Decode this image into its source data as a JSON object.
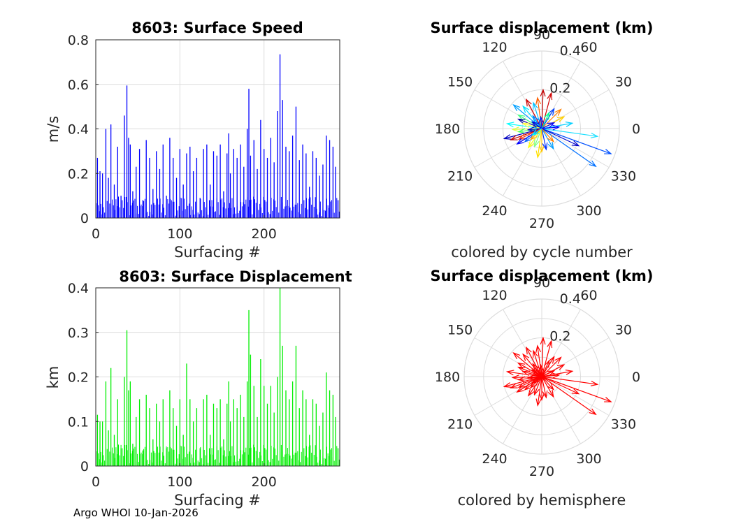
{
  "footer": "Argo WHOI 10-Jan-2026",
  "colors": {
    "speed_bars": "#0000ff",
    "displacement_bars": "#00ee00",
    "hemisphere_arrows": "#ff0000",
    "grid": "#dcdcdc",
    "axis": "#262626"
  },
  "chart_data": [
    {
      "type": "bar",
      "title": "8603: Surface Speed",
      "xlabel": "Surfacing #",
      "ylabel": "m/s",
      "xlim": [
        0,
        290
      ],
      "ylim": [
        0,
        0.8
      ],
      "xticks": [
        "0",
        "100",
        "200"
      ],
      "yticks": [
        "0",
        "0.2",
        "0.4",
        "0.6",
        "0.8"
      ],
      "grid": true,
      "x": [
        2,
        5,
        8,
        12,
        15,
        18,
        22,
        26,
        30,
        34,
        37,
        39,
        41,
        44,
        48,
        52,
        56,
        60,
        64,
        68,
        72,
        76,
        80,
        84,
        88,
        92,
        96,
        100,
        104,
        108,
        112,
        116,
        120,
        124,
        128,
        132,
        136,
        140,
        144,
        148,
        152,
        156,
        158,
        160,
        164,
        168,
        172,
        176,
        180,
        182,
        184,
        188,
        192,
        196,
        200,
        204,
        208,
        212,
        216,
        219,
        222,
        226,
        230,
        234,
        238,
        242,
        246,
        250,
        254,
        258,
        262,
        266,
        270,
        274,
        278,
        282,
        285,
        288
      ],
      "values": [
        0.27,
        0.21,
        0.2,
        0.4,
        0.18,
        0.42,
        0.15,
        0.32,
        0.1,
        0.46,
        0.595,
        0.36,
        0.33,
        0.12,
        0.23,
        0.31,
        0.08,
        0.35,
        0.27,
        0.13,
        0.3,
        0.22,
        0.33,
        0.1,
        0.36,
        0.27,
        0.18,
        0.31,
        0.15,
        0.29,
        0.32,
        0.21,
        0.27,
        0.09,
        0.31,
        0.33,
        0.15,
        0.3,
        0.28,
        0.33,
        0.12,
        0.29,
        0.38,
        0.2,
        0.31,
        0.27,
        0.33,
        0.23,
        0.4,
        0.58,
        0.28,
        0.35,
        0.22,
        0.44,
        0.31,
        0.27,
        0.36,
        0.25,
        0.48,
        0.735,
        0.53,
        0.32,
        0.3,
        0.37,
        0.5,
        0.26,
        0.33,
        0.29,
        0.14,
        0.3,
        0.27,
        0.19,
        0.24,
        0.37,
        0.35,
        0.32,
        0.23,
        0.08
      ]
    },
    {
      "type": "bar",
      "title": "8603: Surface Displacement",
      "xlabel": "Surfacing #",
      "ylabel": "km",
      "xlim": [
        0,
        290
      ],
      "ylim": [
        0,
        0.4
      ],
      "xticks": [
        "0",
        "100",
        "200"
      ],
      "yticks": [
        "0",
        "0.1",
        "0.2",
        "0.3",
        "0.4"
      ],
      "grid": true,
      "x": [
        2,
        5,
        8,
        12,
        15,
        18,
        22,
        26,
        30,
        34,
        37,
        39,
        41,
        44,
        48,
        52,
        56,
        60,
        64,
        68,
        72,
        76,
        80,
        84,
        88,
        92,
        96,
        100,
        104,
        108,
        112,
        116,
        120,
        124,
        128,
        132,
        136,
        140,
        144,
        148,
        152,
        156,
        158,
        160,
        164,
        168,
        172,
        176,
        180,
        182,
        184,
        188,
        192,
        196,
        200,
        204,
        208,
        212,
        216,
        219,
        222,
        226,
        230,
        234,
        238,
        242,
        246,
        250,
        254,
        258,
        262,
        266,
        270,
        274,
        278,
        282,
        285,
        288
      ],
      "values": [
        0.115,
        0.1,
        0.1,
        0.19,
        0.08,
        0.22,
        0.07,
        0.15,
        0.04,
        0.2,
        0.305,
        0.17,
        0.19,
        0.05,
        0.11,
        0.15,
        0.035,
        0.16,
        0.13,
        0.06,
        0.14,
        0.1,
        0.15,
        0.04,
        0.17,
        0.13,
        0.09,
        0.15,
        0.07,
        0.23,
        0.15,
        0.1,
        0.13,
        0.04,
        0.15,
        0.16,
        0.07,
        0.14,
        0.13,
        0.15,
        0.06,
        0.14,
        0.19,
        0.1,
        0.15,
        0.13,
        0.16,
        0.11,
        0.19,
        0.35,
        0.25,
        0.18,
        0.11,
        0.24,
        0.18,
        0.14,
        0.18,
        0.12,
        0.2,
        0.4,
        0.27,
        0.17,
        0.15,
        0.19,
        0.27,
        0.13,
        0.17,
        0.15,
        0.07,
        0.15,
        0.14,
        0.09,
        0.12,
        0.21,
        0.17,
        0.16,
        0.11,
        0.04
      ]
    },
    {
      "type": "polar",
      "title": "Surface displacement (km)",
      "caption": "colored by cycle number",
      "rlim": [
        0,
        0.4
      ],
      "rtick_labels": [
        "0.2",
        "0.4"
      ],
      "rticks": [
        0.2,
        0.4
      ],
      "theta_labels": [
        "0",
        "30",
        "60",
        "90",
        "120",
        "150",
        "180",
        "210",
        "240",
        "270",
        "300",
        "330"
      ],
      "color_mode": "cycle",
      "vectors": [
        {
          "deg": 340,
          "r": 0.38,
          "c": "#0050ff"
        },
        {
          "deg": 325,
          "r": 0.34,
          "c": "#0070ff"
        },
        {
          "deg": 352,
          "r": 0.29,
          "c": "#20e0ff"
        },
        {
          "deg": 335,
          "r": 0.21,
          "c": "#0000c8"
        },
        {
          "deg": 10,
          "r": 0.16,
          "c": "#00d0ff"
        },
        {
          "deg": 28,
          "r": 0.13,
          "c": "#ffd000"
        },
        {
          "deg": 45,
          "r": 0.14,
          "c": "#ff8000"
        },
        {
          "deg": 58,
          "r": 0.12,
          "c": "#0040ff"
        },
        {
          "deg": 75,
          "r": 0.19,
          "c": "#d00000"
        },
        {
          "deg": 88,
          "r": 0.2,
          "c": "#c00000"
        },
        {
          "deg": 98,
          "r": 0.16,
          "c": "#ff6000"
        },
        {
          "deg": 108,
          "r": 0.14,
          "c": "#00c0ff"
        },
        {
          "deg": 118,
          "r": 0.17,
          "c": "#d00000"
        },
        {
          "deg": 130,
          "r": 0.15,
          "c": "#00e0ff"
        },
        {
          "deg": 140,
          "r": 0.19,
          "c": "#00a0ff"
        },
        {
          "deg": 150,
          "r": 0.14,
          "c": "#40ff80"
        },
        {
          "deg": 158,
          "r": 0.13,
          "c": "#0000a0"
        },
        {
          "deg": 172,
          "r": 0.18,
          "c": "#00ffff"
        },
        {
          "deg": 182,
          "r": 0.15,
          "c": "#e0ff40"
        },
        {
          "deg": 188,
          "r": 0.12,
          "c": "#40ff60"
        },
        {
          "deg": 195,
          "r": 0.2,
          "c": "#0000c0"
        },
        {
          "deg": 200,
          "r": 0.17,
          "c": "#c00000"
        },
        {
          "deg": 205,
          "r": 0.13,
          "c": "#ff3000"
        },
        {
          "deg": 212,
          "r": 0.15,
          "c": "#0000ff"
        },
        {
          "deg": 218,
          "r": 0.11,
          "c": "#0060ff"
        },
        {
          "deg": 225,
          "r": 0.08,
          "c": "#ffa000"
        },
        {
          "deg": 235,
          "r": 0.12,
          "c": "#ffff00"
        },
        {
          "deg": 248,
          "r": 0.1,
          "c": "#80ff80"
        },
        {
          "deg": 262,
          "r": 0.15,
          "c": "#ffe000"
        },
        {
          "deg": 270,
          "r": 0.12,
          "c": "#ffc000"
        },
        {
          "deg": 282,
          "r": 0.11,
          "c": "#0030ff"
        },
        {
          "deg": 300,
          "r": 0.12,
          "c": "#00a0ff"
        },
        {
          "deg": 312,
          "r": 0.09,
          "c": "#ff8000"
        },
        {
          "deg": 5,
          "r": 0.09,
          "c": "#0000ff"
        },
        {
          "deg": 65,
          "r": 0.09,
          "c": "#00ff90"
        },
        {
          "deg": 125,
          "r": 0.08,
          "c": "#0080ff"
        },
        {
          "deg": 165,
          "r": 0.1,
          "c": "#ffff40"
        },
        {
          "deg": 185,
          "r": 0.07,
          "c": "#0000d0"
        },
        {
          "deg": 25,
          "r": 0.07,
          "c": "#0000ff"
        },
        {
          "deg": 95,
          "r": 0.06,
          "c": "#0020ff"
        },
        {
          "deg": 145,
          "r": 0.06,
          "c": "#0000e0"
        },
        {
          "deg": 215,
          "r": 0.06,
          "c": "#00ffff"
        }
      ]
    },
    {
      "type": "polar",
      "title": "Surface displacement (km)",
      "caption": "colored by hemisphere",
      "rlim": [
        0,
        0.4
      ],
      "rtick_labels": [
        "0.2",
        "0.4"
      ],
      "rticks": [
        0.2,
        0.4
      ],
      "theta_labels": [
        "0",
        "30",
        "60",
        "90",
        "120",
        "150",
        "180",
        "210",
        "240",
        "270",
        "300",
        "330"
      ],
      "color_mode": "hemisphere",
      "vectors": [
        {
          "deg": 340,
          "r": 0.38
        },
        {
          "deg": 325,
          "r": 0.34
        },
        {
          "deg": 352,
          "r": 0.29
        },
        {
          "deg": 335,
          "r": 0.21
        },
        {
          "deg": 10,
          "r": 0.16
        },
        {
          "deg": 28,
          "r": 0.13
        },
        {
          "deg": 45,
          "r": 0.14
        },
        {
          "deg": 58,
          "r": 0.12
        },
        {
          "deg": 75,
          "r": 0.19
        },
        {
          "deg": 88,
          "r": 0.2
        },
        {
          "deg": 98,
          "r": 0.16
        },
        {
          "deg": 108,
          "r": 0.14
        },
        {
          "deg": 118,
          "r": 0.17
        },
        {
          "deg": 130,
          "r": 0.15
        },
        {
          "deg": 140,
          "r": 0.19
        },
        {
          "deg": 150,
          "r": 0.14
        },
        {
          "deg": 158,
          "r": 0.13
        },
        {
          "deg": 172,
          "r": 0.18
        },
        {
          "deg": 182,
          "r": 0.15
        },
        {
          "deg": 188,
          "r": 0.12
        },
        {
          "deg": 195,
          "r": 0.2
        },
        {
          "deg": 200,
          "r": 0.17
        },
        {
          "deg": 205,
          "r": 0.13
        },
        {
          "deg": 212,
          "r": 0.15
        },
        {
          "deg": 218,
          "r": 0.11
        },
        {
          "deg": 225,
          "r": 0.08
        },
        {
          "deg": 235,
          "r": 0.12
        },
        {
          "deg": 248,
          "r": 0.1
        },
        {
          "deg": 262,
          "r": 0.15
        },
        {
          "deg": 270,
          "r": 0.12
        },
        {
          "deg": 282,
          "r": 0.11
        },
        {
          "deg": 300,
          "r": 0.12
        },
        {
          "deg": 312,
          "r": 0.09
        },
        {
          "deg": 5,
          "r": 0.09
        },
        {
          "deg": 65,
          "r": 0.09
        },
        {
          "deg": 125,
          "r": 0.08
        },
        {
          "deg": 165,
          "r": 0.1
        },
        {
          "deg": 185,
          "r": 0.07
        },
        {
          "deg": 25,
          "r": 0.07
        },
        {
          "deg": 95,
          "r": 0.06
        },
        {
          "deg": 145,
          "r": 0.06
        },
        {
          "deg": 215,
          "r": 0.06
        }
      ]
    }
  ]
}
